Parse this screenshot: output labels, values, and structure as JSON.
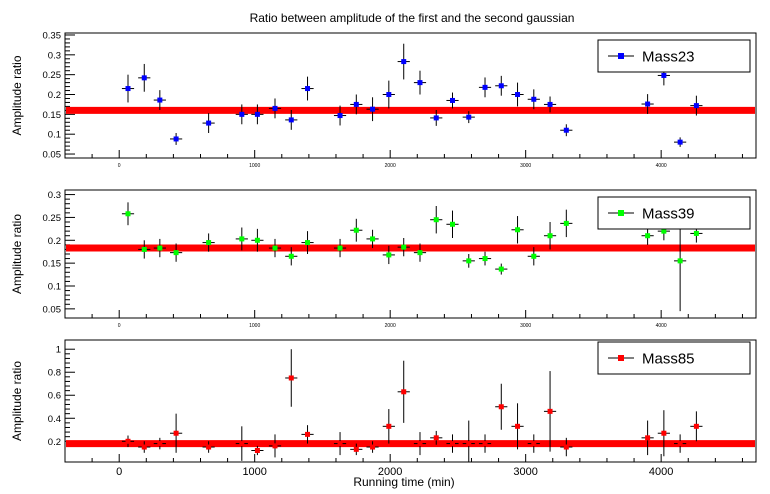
{
  "title": "Ratio between amplitude of the first and the second gaussian",
  "x_axis_label": "Running time (min)",
  "chart_data": [
    {
      "type": "scatter",
      "name": "Mass23",
      "color": "#0000ff",
      "ylabel": "Amplitude ratio",
      "xlim": [
        -400,
        4700
      ],
      "ylim": [
        0.04,
        0.355
      ],
      "yticks": [
        "0.05",
        "0.1",
        "0.15",
        "0.2",
        "0.25",
        "0.3",
        "0.35"
      ],
      "xticks": [
        "0",
        "1000",
        "2000",
        "3000",
        "4000"
      ],
      "fit_value": 0.16,
      "fit_color": "#ff0000",
      "points": [
        {
          "x": 65,
          "y": 0.215,
          "xerr": 45,
          "yerr": 0.035
        },
        {
          "x": 185,
          "y": 0.242,
          "xerr": 45,
          "yerr": 0.035
        },
        {
          "x": 300,
          "y": 0.186,
          "xerr": 45,
          "yerr": 0.025
        },
        {
          "x": 420,
          "y": 0.088,
          "xerr": 45,
          "yerr": 0.015
        },
        {
          "x": 660,
          "y": 0.128,
          "xerr": 45,
          "yerr": 0.025
        },
        {
          "x": 905,
          "y": 0.15,
          "xerr": 45,
          "yerr": 0.025
        },
        {
          "x": 1020,
          "y": 0.15,
          "xerr": 45,
          "yerr": 0.025
        },
        {
          "x": 1150,
          "y": 0.165,
          "xerr": 45,
          "yerr": 0.025
        },
        {
          "x": 1270,
          "y": 0.136,
          "xerr": 45,
          "yerr": 0.025
        },
        {
          "x": 1390,
          "y": 0.215,
          "xerr": 45,
          "yerr": 0.03
        },
        {
          "x": 1630,
          "y": 0.147,
          "xerr": 45,
          "yerr": 0.025
        },
        {
          "x": 1750,
          "y": 0.175,
          "xerr": 45,
          "yerr": 0.025
        },
        {
          "x": 1870,
          "y": 0.163,
          "xerr": 45,
          "yerr": 0.03
        },
        {
          "x": 1990,
          "y": 0.2,
          "xerr": 45,
          "yerr": 0.035
        },
        {
          "x": 2100,
          "y": 0.283,
          "xerr": 45,
          "yerr": 0.045
        },
        {
          "x": 2220,
          "y": 0.23,
          "xerr": 45,
          "yerr": 0.03
        },
        {
          "x": 2340,
          "y": 0.141,
          "xerr": 45,
          "yerr": 0.02
        },
        {
          "x": 2460,
          "y": 0.185,
          "xerr": 45,
          "yerr": 0.02
        },
        {
          "x": 2580,
          "y": 0.143,
          "xerr": 45,
          "yerr": 0.015
        },
        {
          "x": 2700,
          "y": 0.218,
          "xerr": 45,
          "yerr": 0.025
        },
        {
          "x": 2820,
          "y": 0.222,
          "xerr": 45,
          "yerr": 0.025
        },
        {
          "x": 2940,
          "y": 0.2,
          "xerr": 45,
          "yerr": 0.03
        },
        {
          "x": 3060,
          "y": 0.188,
          "xerr": 45,
          "yerr": 0.025
        },
        {
          "x": 3180,
          "y": 0.175,
          "xerr": 45,
          "yerr": 0.02
        },
        {
          "x": 3300,
          "y": 0.11,
          "xerr": 45,
          "yerr": 0.015
        },
        {
          "x": 3900,
          "y": 0.176,
          "xerr": 45,
          "yerr": 0.025
        },
        {
          "x": 4020,
          "y": 0.248,
          "xerr": 45,
          "yerr": 0.025
        },
        {
          "x": 4140,
          "y": 0.08,
          "xerr": 45,
          "yerr": 0.012
        },
        {
          "x": 4260,
          "y": 0.172,
          "xerr": 45,
          "yerr": 0.025
        }
      ]
    },
    {
      "type": "scatter",
      "name": "Mass39",
      "color": "#00ff00",
      "ylabel": "Amplitude ratio",
      "xlim": [
        -400,
        4700
      ],
      "ylim": [
        0.03,
        0.31
      ],
      "yticks": [
        "0.05",
        "0.1",
        "0.15",
        "0.2",
        "0.25",
        "0.3"
      ],
      "xticks": [
        "0",
        "1000",
        "2000",
        "3000",
        "4000"
      ],
      "fit_value": 0.183,
      "fit_color": "#ff0000",
      "points": [
        {
          "x": 65,
          "y": 0.258,
          "xerr": 45,
          "yerr": 0.025
        },
        {
          "x": 185,
          "y": 0.18,
          "xerr": 45,
          "yerr": 0.02
        },
        {
          "x": 300,
          "y": 0.183,
          "xerr": 45,
          "yerr": 0.02
        },
        {
          "x": 420,
          "y": 0.173,
          "xerr": 45,
          "yerr": 0.02
        },
        {
          "x": 660,
          "y": 0.195,
          "xerr": 45,
          "yerr": 0.02
        },
        {
          "x": 905,
          "y": 0.203,
          "xerr": 45,
          "yerr": 0.025
        },
        {
          "x": 1020,
          "y": 0.2,
          "xerr": 45,
          "yerr": 0.025
        },
        {
          "x": 1150,
          "y": 0.183,
          "xerr": 45,
          "yerr": 0.02
        },
        {
          "x": 1270,
          "y": 0.165,
          "xerr": 45,
          "yerr": 0.02
        },
        {
          "x": 1390,
          "y": 0.195,
          "xerr": 45,
          "yerr": 0.025
        },
        {
          "x": 1630,
          "y": 0.183,
          "xerr": 45,
          "yerr": 0.02
        },
        {
          "x": 1750,
          "y": 0.222,
          "xerr": 45,
          "yerr": 0.025
        },
        {
          "x": 1870,
          "y": 0.203,
          "xerr": 45,
          "yerr": 0.02
        },
        {
          "x": 1990,
          "y": 0.168,
          "xerr": 45,
          "yerr": 0.02
        },
        {
          "x": 2100,
          "y": 0.185,
          "xerr": 45,
          "yerr": 0.02
        },
        {
          "x": 2220,
          "y": 0.173,
          "xerr": 45,
          "yerr": 0.02
        },
        {
          "x": 2340,
          "y": 0.245,
          "xerr": 45,
          "yerr": 0.03
        },
        {
          "x": 2460,
          "y": 0.235,
          "xerr": 45,
          "yerr": 0.03
        },
        {
          "x": 2580,
          "y": 0.155,
          "xerr": 45,
          "yerr": 0.015
        },
        {
          "x": 2700,
          "y": 0.16,
          "xerr": 45,
          "yerr": 0.015
        },
        {
          "x": 2820,
          "y": 0.137,
          "xerr": 45,
          "yerr": 0.012
        },
        {
          "x": 2940,
          "y": 0.223,
          "xerr": 45,
          "yerr": 0.03
        },
        {
          "x": 3060,
          "y": 0.165,
          "xerr": 45,
          "yerr": 0.02
        },
        {
          "x": 3180,
          "y": 0.21,
          "xerr": 45,
          "yerr": 0.03
        },
        {
          "x": 3300,
          "y": 0.237,
          "xerr": 45,
          "yerr": 0.03
        },
        {
          "x": 3900,
          "y": 0.21,
          "xerr": 45,
          "yerr": 0.02
        },
        {
          "x": 4020,
          "y": 0.22,
          "xerr": 45,
          "yerr": 0.02
        },
        {
          "x": 4140,
          "y": 0.155,
          "xerr": 45,
          "yerr": 0.11
        },
        {
          "x": 4260,
          "y": 0.215,
          "xerr": 45,
          "yerr": 0.02
        }
      ]
    },
    {
      "type": "scatter",
      "name": "Mass85",
      "color": "#ff0000",
      "ylabel": "Amplitude ratio",
      "xlim": [
        -400,
        4700
      ],
      "ylim": [
        0.02,
        1.08
      ],
      "yticks": [
        "0.2",
        "0.4",
        "0.6",
        "0.8",
        "1"
      ],
      "xticks": [
        "0",
        "1000",
        "2000",
        "3000",
        "4000"
      ],
      "fit_value": 0.18,
      "fit_color": "#ff0000",
      "points": [
        {
          "x": 65,
          "y": 0.2,
          "xerr": 45,
          "yerr": 0.05
        },
        {
          "x": 185,
          "y": 0.15,
          "xerr": 45,
          "yerr": 0.05
        },
        {
          "x": 300,
          "y": 0.18,
          "xerr": 45,
          "yerr": 0.05
        },
        {
          "x": 420,
          "y": 0.27,
          "xerr": 45,
          "yerr": 0.17
        },
        {
          "x": 660,
          "y": 0.15,
          "xerr": 45,
          "yerr": 0.05
        },
        {
          "x": 905,
          "y": 0.18,
          "xerr": 45,
          "yerr": 0.15
        },
        {
          "x": 1020,
          "y": 0.12,
          "xerr": 45,
          "yerr": 0.04
        },
        {
          "x": 1150,
          "y": 0.16,
          "xerr": 45,
          "yerr": 0.1
        },
        {
          "x": 1270,
          "y": 0.75,
          "xerr": 45,
          "yerr": 0.25
        },
        {
          "x": 1390,
          "y": 0.26,
          "xerr": 45,
          "yerr": 0.08
        },
        {
          "x": 1630,
          "y": 0.18,
          "xerr": 45,
          "yerr": 0.1
        },
        {
          "x": 1750,
          "y": 0.13,
          "xerr": 45,
          "yerr": 0.05
        },
        {
          "x": 1870,
          "y": 0.15,
          "xerr": 45,
          "yerr": 0.05
        },
        {
          "x": 1990,
          "y": 0.33,
          "xerr": 45,
          "yerr": 0.15
        },
        {
          "x": 2100,
          "y": 0.63,
          "xerr": 45,
          "yerr": 0.27
        },
        {
          "x": 2220,
          "y": 0.18,
          "xerr": 45,
          "yerr": 0.1
        },
        {
          "x": 2340,
          "y": 0.23,
          "xerr": 45,
          "yerr": 0.06
        },
        {
          "x": 2460,
          "y": 0.18,
          "xerr": 45,
          "yerr": 0.08
        },
        {
          "x": 2580,
          "y": 0.18,
          "xerr": 45,
          "yerr": 0.2
        },
        {
          "x": 2700,
          "y": 0.18,
          "xerr": 45,
          "yerr": 0.08
        },
        {
          "x": 2820,
          "y": 0.5,
          "xerr": 45,
          "yerr": 0.2
        },
        {
          "x": 2940,
          "y": 0.33,
          "xerr": 45,
          "yerr": 0.2
        },
        {
          "x": 3060,
          "y": 0.18,
          "xerr": 45,
          "yerr": 0.08
        },
        {
          "x": 3180,
          "y": 0.46,
          "xerr": 45,
          "yerr": 0.35
        },
        {
          "x": 3300,
          "y": 0.15,
          "xerr": 45,
          "yerr": 0.08
        },
        {
          "x": 3900,
          "y": 0.23,
          "xerr": 45,
          "yerr": 0.15
        },
        {
          "x": 4020,
          "y": 0.27,
          "xerr": 45,
          "yerr": 0.2
        },
        {
          "x": 4140,
          "y": 0.18,
          "xerr": 45,
          "yerr": 0.08
        },
        {
          "x": 4260,
          "y": 0.33,
          "xerr": 45,
          "yerr": 0.13
        }
      ]
    }
  ]
}
